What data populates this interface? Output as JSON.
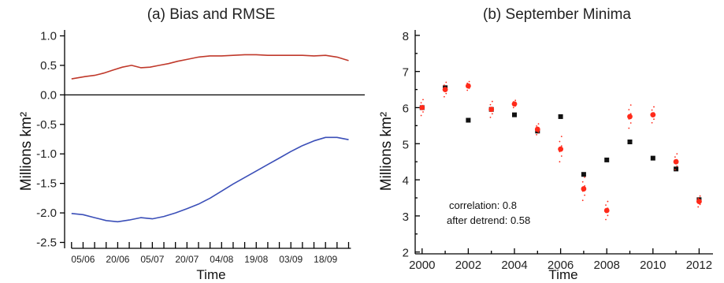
{
  "chart_data": [
    {
      "type": "line",
      "title": "(a) Bias and RMSE",
      "xlabel": "Time",
      "ylabel": "Millions km²",
      "ylim": [
        -2.6,
        1.1
      ],
      "yticks": [
        "1.0",
        "0.5",
        "0.0",
        "-0.5",
        "-1.0",
        "-1.5",
        "-2.0",
        "-2.5"
      ],
      "ytick_values": [
        1.0,
        0.5,
        0.0,
        -0.5,
        -1.0,
        -1.5,
        -2.0,
        -2.5
      ],
      "x_tick_labels": [
        "05/06",
        "20/06",
        "05/07",
        "20/07",
        "04/08",
        "19/08",
        "03/09",
        "18/09"
      ],
      "x_tick_days": [
        5,
        20,
        35,
        50,
        65,
        80,
        95,
        110
      ],
      "xlim_days": [
        -3,
        127
      ],
      "series": [
        {
          "color": "#c0392b",
          "x_days": [
            0,
            3,
            6,
            10,
            14,
            18,
            22,
            26,
            30,
            34,
            38,
            42,
            46,
            50,
            55,
            60,
            65,
            70,
            75,
            80,
            85,
            90,
            95,
            100,
            105,
            110,
            115,
            120
          ],
          "values": [
            0.27,
            0.29,
            0.31,
            0.33,
            0.37,
            0.42,
            0.47,
            0.5,
            0.46,
            0.47,
            0.5,
            0.53,
            0.57,
            0.6,
            0.64,
            0.66,
            0.66,
            0.67,
            0.68,
            0.68,
            0.67,
            0.67,
            0.67,
            0.67,
            0.66,
            0.67,
            0.64,
            0.58
          ]
        },
        {
          "color": "#3b4fb8",
          "x_days": [
            0,
            5,
            10,
            15,
            20,
            25,
            30,
            35,
            40,
            45,
            50,
            55,
            60,
            65,
            70,
            75,
            80,
            85,
            90,
            95,
            100,
            105,
            110,
            115,
            120
          ],
          "values": [
            -2.01,
            -2.03,
            -2.08,
            -2.13,
            -2.15,
            -2.12,
            -2.08,
            -2.1,
            -2.06,
            -2.0,
            -1.93,
            -1.85,
            -1.75,
            -1.63,
            -1.51,
            -1.4,
            -1.29,
            -1.18,
            -1.07,
            -0.96,
            -0.86,
            -0.78,
            -0.72,
            -0.72,
            -0.76
          ]
        }
      ]
    },
    {
      "type": "scatter",
      "title": "(b) September Minima",
      "xlabel": "Time",
      "ylabel": "Millions km²",
      "xlim": [
        1999.7,
        2012.6
      ],
      "ylim": [
        1.95,
        8.15
      ],
      "xticks": [
        2000,
        2002,
        2004,
        2006,
        2008,
        2010,
        2012
      ],
      "yticks": [
        2,
        3,
        4,
        5,
        6,
        7,
        8
      ],
      "annotations": [
        "correlation: 0.8",
        "after detrend: 0.58"
      ],
      "series": [
        {
          "color": "#111111",
          "marker": "square",
          "x": [
            2000,
            2001,
            2002,
            2003,
            2004,
            2005,
            2006,
            2007,
            2008,
            2009,
            2010,
            2011,
            2012
          ],
          "y": [
            6.0,
            6.55,
            5.65,
            5.95,
            5.8,
            5.35,
            5.75,
            4.15,
            4.55,
            5.05,
            4.6,
            4.3,
            3.45
          ]
        },
        {
          "color": "#ff2a1a",
          "marker": "circle",
          "x": [
            2000,
            2001,
            2002,
            2003,
            2004,
            2005,
            2006,
            2007,
            2008,
            2009,
            2010,
            2011,
            2012
          ],
          "y": [
            6.0,
            6.5,
            6.6,
            5.95,
            6.1,
            5.4,
            4.85,
            3.75,
            3.15,
            5.75,
            5.8,
            4.5,
            3.4
          ],
          "spread": [
            0.22,
            0.2,
            0.12,
            0.22,
            0.1,
            0.15,
            0.35,
            0.32,
            0.25,
            0.32,
            0.22,
            0.22,
            0.15
          ]
        }
      ]
    }
  ]
}
